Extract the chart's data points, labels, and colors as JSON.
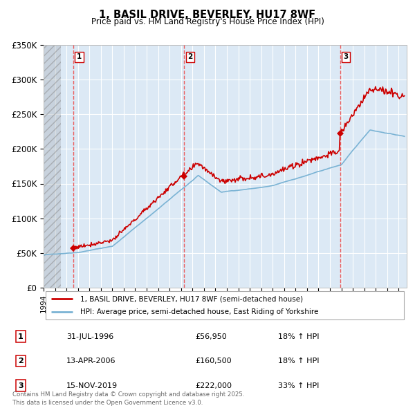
{
  "title": "1, BASIL DRIVE, BEVERLEY, HU17 8WF",
  "subtitle": "Price paid vs. HM Land Registry's House Price Index (HPI)",
  "legend_label_red": "1, BASIL DRIVE, BEVERLEY, HU17 8WF (semi-detached house)",
  "legend_label_blue": "HPI: Average price, semi-detached house, East Riding of Yorkshire",
  "ylim": [
    0,
    350000
  ],
  "yticks": [
    0,
    50000,
    100000,
    150000,
    200000,
    250000,
    300000,
    350000
  ],
  "ytick_labels": [
    "£0",
    "£50K",
    "£100K",
    "£150K",
    "£200K",
    "£250K",
    "£300K",
    "£350K"
  ],
  "background_color": "#ffffff",
  "plot_bg_color": "#dce9f5",
  "grid_color": "#ffffff",
  "sale_points": [
    {
      "date": 1996.58,
      "price": 56950,
      "label": "1"
    },
    {
      "date": 2006.28,
      "price": 160500,
      "label": "2"
    },
    {
      "date": 2019.88,
      "price": 222000,
      "label": "3"
    }
  ],
  "transactions": [
    {
      "num": "1",
      "date": "31-JUL-1996",
      "price": "£56,950",
      "hpi": "18% ↑ HPI"
    },
    {
      "num": "2",
      "date": "13-APR-2006",
      "price": "£160,500",
      "hpi": "18% ↑ HPI"
    },
    {
      "num": "3",
      "date": "15-NOV-2019",
      "price": "£222,000",
      "hpi": "33% ↑ HPI"
    }
  ],
  "footer": "Contains HM Land Registry data © Crown copyright and database right 2025.\nThis data is licensed under the Open Government Licence v3.0.",
  "hpi_color": "#7ab3d4",
  "sale_color": "#cc0000",
  "vline_color": "#ee4444",
  "xlim_start": 1994,
  "xlim_end": 2025.7,
  "hatch_end": 1995.5
}
